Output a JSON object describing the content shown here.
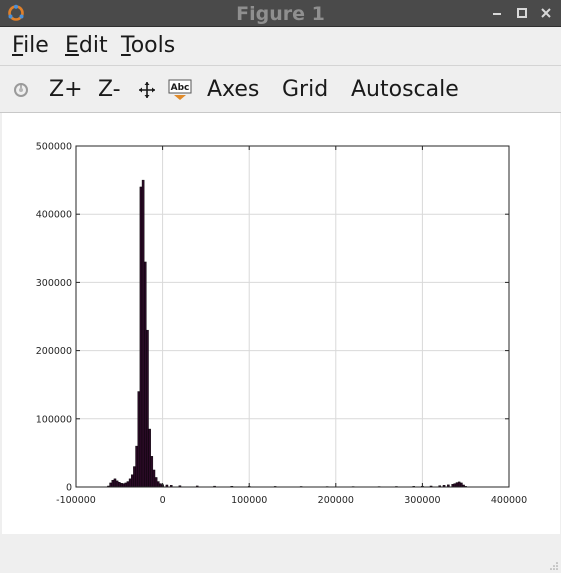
{
  "window": {
    "title": "Figure 1",
    "controls": [
      "minimize",
      "maximize",
      "close"
    ]
  },
  "menu": [
    {
      "label": "File",
      "mnemonic": "F",
      "rest": "ile"
    },
    {
      "label": "Edit",
      "mnemonic": "E",
      "rest": "dit"
    },
    {
      "label": "Tools",
      "mnemonic": "T",
      "rest": "ools"
    }
  ],
  "toolbar": {
    "rotate_icon": "rotate-icon",
    "zoom_in_label": "Z+",
    "zoom_out_label": "Z-",
    "pan_icon": "pan-icon",
    "text_icon": "text-annotation-icon",
    "text_icon_glyph": "Abc",
    "axes_label": "Axes",
    "grid_label": "Grid",
    "autoscale_label": "Autoscale"
  },
  "chart_data": {
    "type": "bar",
    "title": "",
    "xlabel": "",
    "ylabel": "",
    "xlim": [
      -100000,
      400000
    ],
    "ylim": [
      0,
      500000
    ],
    "xticks": [
      -100000,
      0,
      100000,
      200000,
      300000,
      400000
    ],
    "xtick_labels": [
      "-100000",
      "0",
      "100000",
      "200000",
      "300000",
      "400000"
    ],
    "yticks": [
      0,
      100000,
      200000,
      300000,
      400000,
      500000
    ],
    "ytick_labels": [
      "0",
      "100000",
      "200000",
      "300000",
      "400000",
      "500000"
    ],
    "grid": true,
    "bar_color": "#2a0a26",
    "bin_width": 2500,
    "x": [
      -62500,
      -60000,
      -57500,
      -55000,
      -52500,
      -50000,
      -47500,
      -45000,
      -42500,
      -40000,
      -37500,
      -35000,
      -32500,
      -30000,
      -27500,
      -25000,
      -22500,
      -20000,
      -17500,
      -15000,
      -12500,
      -10000,
      -7500,
      -5000,
      -2500,
      0,
      5000,
      10000,
      20000,
      40000,
      60000,
      80000,
      100000,
      130000,
      160000,
      190000,
      220000,
      250000,
      270000,
      290000,
      300000,
      310000,
      320000,
      325000,
      330000,
      335000,
      337500,
      340000,
      342500,
      345000,
      347500,
      350000
    ],
    "values": [
      1500,
      6000,
      10000,
      12000,
      9000,
      7000,
      5500,
      5000,
      6000,
      8000,
      12000,
      18000,
      30000,
      60000,
      140000,
      440000,
      450000,
      330000,
      230000,
      85000,
      45000,
      25000,
      14000,
      8000,
      5000,
      3500,
      3000,
      2500,
      2000,
      1600,
      1300,
      1100,
      1000,
      900,
      800,
      700,
      700,
      700,
      800,
      1000,
      1200,
      1500,
      2000,
      2500,
      3200,
      4000,
      5000,
      6500,
      7500,
      6000,
      3000,
      1000
    ]
  }
}
